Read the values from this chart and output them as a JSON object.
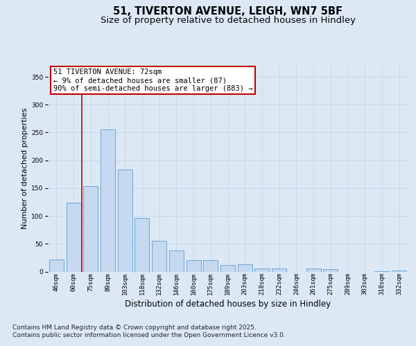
{
  "title_line1": "51, TIVERTON AVENUE, LEIGH, WN7 5BF",
  "title_line2": "Size of property relative to detached houses in Hindley",
  "xlabel": "Distribution of detached houses by size in Hindley",
  "ylabel": "Number of detached properties",
  "categories": [
    "46sqm",
    "60sqm",
    "75sqm",
    "89sqm",
    "103sqm",
    "118sqm",
    "132sqm",
    "146sqm",
    "160sqm",
    "175sqm",
    "189sqm",
    "203sqm",
    "218sqm",
    "232sqm",
    "246sqm",
    "261sqm",
    "275sqm",
    "289sqm",
    "303sqm",
    "318sqm",
    "332sqm"
  ],
  "values": [
    22,
    124,
    153,
    256,
    183,
    96,
    55,
    38,
    21,
    21,
    12,
    13,
    6,
    5,
    0,
    5,
    4,
    0,
    0,
    1,
    2
  ],
  "bar_color": "#c5d9f0",
  "bar_edge_color": "#5b9bd5",
  "vline_x": 1.5,
  "vline_color": "#c00000",
  "annotation_text": "51 TIVERTON AVENUE: 72sqm\n← 9% of detached houses are smaller (87)\n90% of semi-detached houses are larger (883) →",
  "annotation_box_facecolor": "#ffffff",
  "annotation_box_edgecolor": "#c00000",
  "ylim": [
    0,
    370
  ],
  "yticks": [
    0,
    50,
    100,
    150,
    200,
    250,
    300,
    350
  ],
  "grid_color": "#c5d8ea",
  "background_color": "#dce9f5",
  "footer_line1": "Contains HM Land Registry data © Crown copyright and database right 2025.",
  "footer_line2": "Contains public sector information licensed under the Open Government Licence v3.0.",
  "title_fontsize": 10.5,
  "subtitle_fontsize": 9.5,
  "tick_fontsize": 6.5,
  "ylabel_fontsize": 8,
  "xlabel_fontsize": 8.5,
  "footer_fontsize": 6.5,
  "annot_fontsize": 7.5
}
